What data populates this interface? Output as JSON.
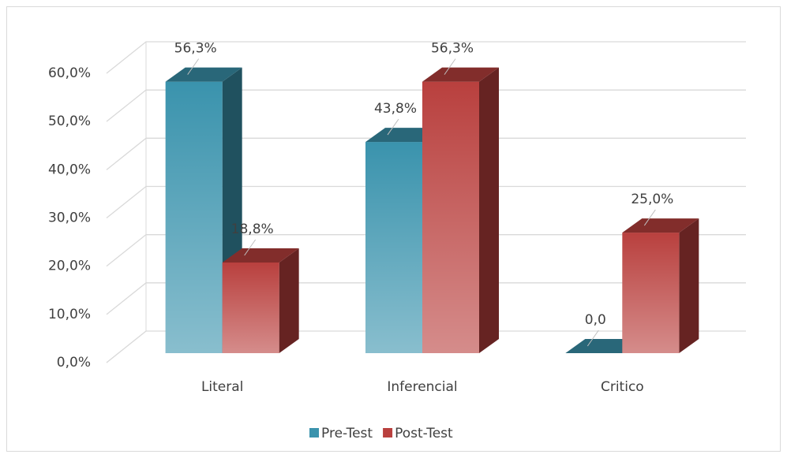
{
  "chart_data": {
    "type": "bar3d",
    "categories": [
      "Literal",
      "Inferencial",
      "Critico"
    ],
    "series": [
      {
        "name": "Pre-Test",
        "color": "#3a93ad",
        "values": [
          56.3,
          43.8,
          0
        ],
        "value_labels": [
          "56,3%",
          "43,8%",
          "0,0"
        ]
      },
      {
        "name": "Post-Test",
        "color": "#b9403e",
        "values": [
          18.8,
          56.3,
          25.0
        ],
        "value_labels": [
          "18,8%",
          "56,3%",
          "25,0%"
        ]
      }
    ],
    "ylim": [
      0,
      60
    ],
    "yticks": [
      {
        "value": 0,
        "label": "0,0%"
      },
      {
        "value": 10,
        "label": "10,0%"
      },
      {
        "value": 20,
        "label": "20,0%"
      },
      {
        "value": 30,
        "label": "30,0%"
      },
      {
        "value": 40,
        "label": "40,0%"
      },
      {
        "value": 50,
        "label": "50,0%"
      },
      {
        "value": 60,
        "label": "60,0%"
      }
    ],
    "grid": true,
    "legend": "bottom"
  }
}
